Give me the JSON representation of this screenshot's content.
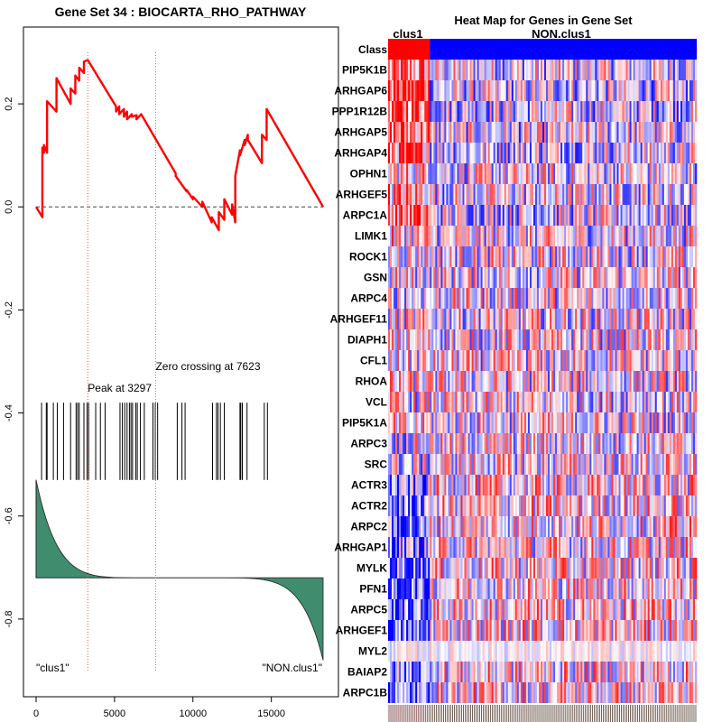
{
  "chart_data": [
    {
      "type": "line",
      "title": "Gene Set  34 : BIOCARTA_RHO_PATHWAY",
      "xlim": [
        0,
        18300
      ],
      "ylim": [
        -0.9,
        0.3
      ],
      "x_ticks": [
        0,
        5000,
        10000,
        15000
      ],
      "x_tick_labels": [
        "0",
        "5000",
        "10000",
        "15000"
      ],
      "y_ticks": [
        0.2,
        0.0,
        -0.2,
        -0.4,
        -0.6,
        -0.8
      ],
      "y_tick_labels": [
        "0.2",
        "0.0",
        "-0.2",
        "-0.4",
        "-0.6",
        "-0.8"
      ],
      "colors": {
        "es_line": "#ff0000",
        "peak_line": "#ff4d4d",
        "zero_line": "#33cc33",
        "metric_fill": "#3f8c6e",
        "baseline": "#444444"
      },
      "running_es": {
        "x": [
          0,
          400,
          400,
          500,
          500,
          700,
          700,
          1300,
          1300,
          2200,
          2200,
          2500,
          2500,
          2750,
          2750,
          3050,
          3050,
          3297,
          5100,
          5100,
          5300,
          5300,
          5600,
          5600,
          5800,
          5800,
          6100,
          6100,
          6400,
          6400,
          6700,
          8900,
          8900,
          9600,
          9600,
          10000,
          10000,
          10600,
          10600,
          11200,
          11200,
          11650,
          11650,
          12000,
          12000,
          12500,
          12500,
          12700,
          12700,
          13000,
          13000,
          13300,
          13300,
          13500,
          13500,
          14400,
          14400,
          14700,
          14700,
          18300
        ],
        "y": [
          0.0,
          -0.02,
          0.115,
          0.105,
          0.12,
          0.105,
          0.205,
          0.185,
          0.25,
          0.2,
          0.23,
          0.22,
          0.255,
          0.245,
          0.27,
          0.26,
          0.282,
          0.285,
          0.195,
          0.185,
          0.195,
          0.18,
          0.19,
          0.175,
          0.185,
          0.17,
          0.18,
          0.175,
          0.178,
          0.17,
          0.18,
          0.065,
          0.06,
          0.03,
          0.033,
          0.015,
          0.02,
          0.0,
          0.01,
          -0.03,
          -0.02,
          -0.045,
          -0.01,
          -0.025,
          0.015,
          -0.015,
          0.005,
          -0.03,
          0.06,
          0.11,
          0.1,
          0.13,
          0.12,
          0.14,
          0.13,
          0.085,
          0.14,
          0.13,
          0.19,
          0.0
        ]
      },
      "zero_reference": 0.0,
      "peak": {
        "x": 3297,
        "label": "Peak at 3297"
      },
      "zero_crossing": {
        "x": 7623,
        "label": "Zero crossing at 7623"
      },
      "hit_positions": [
        350,
        650,
        700,
        1100,
        1350,
        1750,
        2200,
        2550,
        2650,
        2750,
        3050,
        3250,
        3350,
        3800,
        4100,
        4400,
        5350,
        5500,
        5650,
        5800,
        5950,
        6050,
        6150,
        6350,
        6450,
        6650,
        6900,
        7450,
        7600,
        7750,
        9000,
        9300,
        9500,
        11250,
        11500,
        11600,
        11750,
        12000,
        13000,
        13050,
        13150,
        13450,
        14550,
        14750
      ],
      "hits_band": [
        -0.53,
        -0.38
      ],
      "ranked_metric": {
        "start": -0.53,
        "middle": -0.72,
        "end": -0.88,
        "baseline": -0.72
      },
      "class_labels": {
        "left": "\"clus1\"",
        "right": "\"NON.clus1\""
      }
    },
    {
      "type": "heatmap",
      "title": "Heat Map for Genes in Gene Set",
      "class_row_label": "Class",
      "classes": [
        {
          "name": "clus1",
          "color": "#ff0000",
          "fraction": 0.135
        },
        {
          "name": "NON.clus1",
          "color": "#0000ff",
          "fraction": 0.865
        }
      ],
      "genes": [
        "PIP5K1B",
        "ARHGAP6",
        "PPP1R12B",
        "ARHGAP5",
        "ARHGAP4",
        "OPHN1",
        "ARHGEF5",
        "ARPC1A",
        "LIMK1",
        "ROCK1",
        "GSN",
        "ARPC4",
        "ARHGEF11",
        "DIAPH1",
        "CFL1",
        "RHOA",
        "VCL",
        "PIP5K1A",
        "ARPC3",
        "SRC",
        "ACTR3",
        "ACTR2",
        "ARPC2",
        "ARHGAP1",
        "MYLK",
        "PFN1",
        "ARPC5",
        "ARHGEF1",
        "MYL2",
        "BAIAP2",
        "ARPC1B"
      ],
      "clus1_bias": [
        0.3,
        0.65,
        0.55,
        0.45,
        0.4,
        0.15,
        0.25,
        0.45,
        0.1,
        0.05,
        0.0,
        0.0,
        0.0,
        0.0,
        0.0,
        0.05,
        0.0,
        0.0,
        -0.05,
        -0.1,
        -0.35,
        -0.4,
        -0.45,
        -0.3,
        -0.4,
        -0.5,
        -0.45,
        -0.55,
        -0.05,
        -0.35,
        -0.4
      ],
      "colors": {
        "high": "#ff0000",
        "mid": "#ffffff",
        "low": "#0000ff"
      }
    }
  ]
}
